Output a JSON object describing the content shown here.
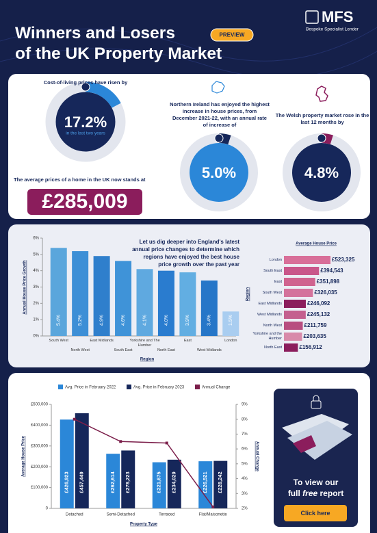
{
  "header": {
    "title": [
      "Winners and Losers",
      "of the UK Property Market"
    ],
    "badge": "PREVIEW",
    "logo": "MFS",
    "tagline": "Bespoke Specialist Lender"
  },
  "stats": {
    "cost_of_living": {
      "text": "Cost-of-living prices have risen by",
      "value": 17.2,
      "value_label": "17.2%",
      "note": "in the last two years"
    },
    "average_price": {
      "text": "The average prices of a home in the UK now stands at",
      "value": "£285,009"
    },
    "northern_ireland": {
      "text": "Northern Ireland has enjoyed the highest increase in house prices, from December 2021-22, with an annual rate of increase of",
      "value": 5.0,
      "value_label": "5.0%"
    },
    "wales": {
      "text": "The Welsh property market rose in the last 12 months by",
      "value": 4.8,
      "value_label": "4.8%"
    }
  },
  "chart_data": [
    {
      "type": "bar",
      "annotation": "Let us dig deeper into England's latest annual price changes to determine which regions have enjoyed the best house price growth over the past year",
      "y_label": "Annual House Price Growth",
      "x_label": "Region",
      "categories": [
        "South West",
        "North West",
        "East Midlands",
        "South East",
        "Yorkshire and The Humber",
        "North East",
        "East",
        "West Midlands",
        "London"
      ],
      "values": [
        5.4,
        5.2,
        4.9,
        4.6,
        4.1,
        4.0,
        3.9,
        3.4,
        1.5
      ],
      "value_labels": [
        "5.4%",
        "5.2%",
        "4.9%",
        "4.6%",
        "4.1%",
        "4.0%",
        "3.9%",
        "3.4%",
        "1.5%"
      ],
      "colors": [
        "#5aa6dc",
        "#3d8fd6",
        "#2f7fcc",
        "#3f93d8",
        "#5fa9e0",
        "#2a7ccf",
        "#62aee2",
        "#2676c8",
        "#a9cdf0"
      ],
      "ylim": [
        0,
        6
      ],
      "yticks": [
        {
          "value": 0,
          "label": "0%"
        },
        {
          "value": 1,
          "label": "1%"
        },
        {
          "value": 2,
          "label": "2%"
        },
        {
          "value": 3,
          "label": "3%"
        },
        {
          "value": 4,
          "label": "4%"
        },
        {
          "value": 5,
          "label": "5%"
        },
        {
          "value": 6,
          "label": "6%"
        }
      ]
    },
    {
      "type": "hbar",
      "title": "Average House Price",
      "y_label": "Region",
      "categories": [
        "London",
        "South East",
        "East",
        "South West",
        "East Midlands",
        "West Midlands",
        "North West",
        "Yorkshire and the Humber",
        "North East"
      ],
      "values": [
        523325,
        394543,
        351898,
        326035,
        246092,
        245132,
        211759,
        203635,
        156912
      ],
      "value_labels": [
        "£523,325",
        "£394,543",
        "£351,898",
        "£326,035",
        "£246,092",
        "£245,132",
        "£211,759",
        "£203,635",
        "£156,912"
      ],
      "colors": [
        "#d86f99",
        "#c9568a",
        "#d0638f",
        "#d4739c",
        "#8b1d5c",
        "#c4608f",
        "#b84d80",
        "#d88aaa",
        "#8b1d5c"
      ]
    },
    {
      "type": "combo",
      "x_label": "Property Type",
      "y_label": "Average House Price",
      "y2_label": "Annual Change",
      "categories": [
        "Detached",
        "Semi-Detached",
        "Terraced",
        "Flat/Maisonette"
      ],
      "series": [
        {
          "name": "Avg. Price in February 2022",
          "color": "#2b87d8",
          "type": "bar",
          "values": [
            426923,
            262614,
            221675,
            226521
          ],
          "value_labels": [
            "£426,923",
            "£262,614",
            "£221,675",
            "£226,521"
          ]
        },
        {
          "name": "Avg. Price in February 2023",
          "color": "#16275a",
          "type": "bar",
          "values": [
            457449,
            278223,
            234029,
            228242
          ],
          "value_labels": [
            "£457,449",
            "£278,223",
            "£234,029",
            "£228,242"
          ]
        },
        {
          "name": "Annual Change",
          "color": "#7b1e4a",
          "type": "line",
          "axis": "y2",
          "values": [
            8.0,
            6.5,
            6.4,
            2.1
          ]
        }
      ],
      "ylim": [
        0,
        500000
      ],
      "yticks": [
        0,
        {
          "value": 100000,
          "label": "£100,000"
        },
        {
          "value": 200000,
          "label": "£200,000"
        },
        {
          "value": 300000,
          "label": "£300,000"
        },
        {
          "value": 400000,
          "label": "£400,000"
        },
        {
          "value": 500000,
          "label": "£500,000"
        }
      ],
      "y2lim": [
        2,
        9
      ],
      "y2ticks": [
        {
          "value": 2,
          "label": "2%"
        },
        {
          "value": 3,
          "label": "3%"
        },
        {
          "value": 4,
          "label": "4%"
        },
        {
          "value": 5,
          "label": "5%"
        },
        {
          "value": 6,
          "label": "6%"
        },
        {
          "value": 7,
          "label": "7%"
        },
        {
          "value": 8,
          "label": "8%"
        },
        {
          "value": 9,
          "label": "9%"
        }
      ]
    }
  ],
  "cta": {
    "line1": "To view our",
    "full": "full",
    "free": "free",
    "report": "report",
    "button": "Click here"
  }
}
